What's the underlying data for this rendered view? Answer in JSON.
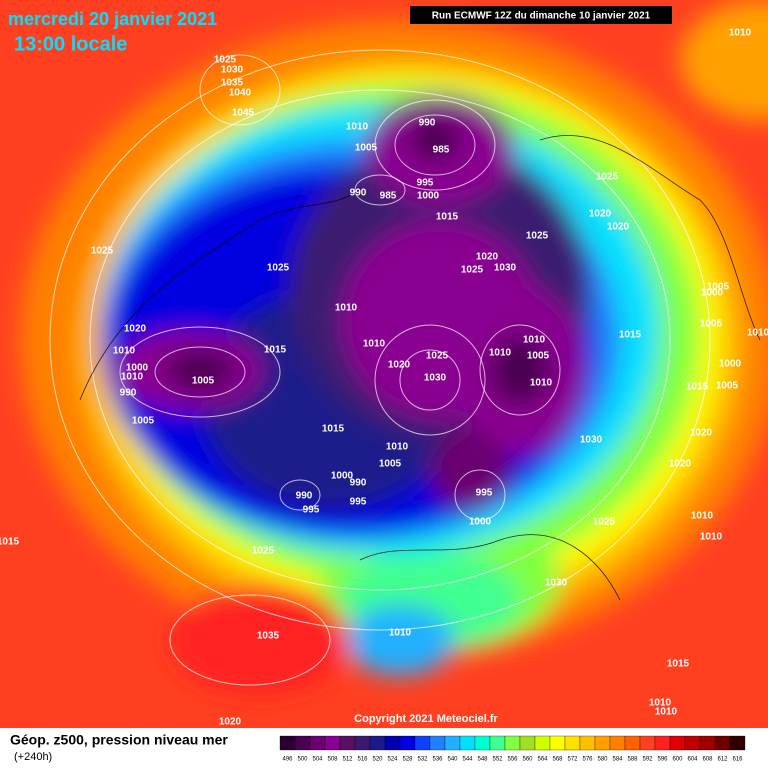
{
  "header": {
    "date": "mercredi 20 janvier 2021",
    "time": "13:00 locale",
    "run": "Run ECMWF 12Z du dimanche 10 janvier 2021"
  },
  "map": {
    "isobar_labels": [
      1025,
      1030,
      1035,
      1040,
      1045,
      1010,
      990,
      985,
      1005,
      995,
      1000,
      990,
      985,
      1015,
      1025,
      1025,
      1020,
      1020,
      1025,
      1025,
      1020,
      1025,
      1030,
      1005,
      1000,
      1010,
      1010,
      1020,
      1010,
      1015,
      1025,
      1020,
      1030,
      1010,
      1010,
      1005,
      1010,
      1005,
      1010,
      1015,
      1000,
      1005,
      1015,
      1000,
      1010,
      990,
      1005,
      1005,
      1015,
      1010,
      1005,
      1030,
      1020,
      1020,
      1000,
      990,
      995,
      990,
      995,
      995,
      1000,
      1025,
      1010,
      1010,
      1015,
      1025,
      1030,
      1010,
      1035,
      1015,
      1010,
      1010,
      1020,
      1010
    ],
    "copyright": "Copyright 2021 Meteociel.fr"
  },
  "footer": {
    "title": "Géop. z500, pression niveau mer",
    "lead": "(+240h)",
    "scale": {
      "labels": [
        496,
        500,
        504,
        508,
        512,
        516,
        520,
        524,
        528,
        532,
        536,
        540,
        544,
        548,
        552,
        556,
        560,
        564,
        568,
        572,
        576,
        580,
        584,
        588,
        592,
        596,
        600,
        604,
        608,
        612,
        616
      ],
      "colors": [
        "#2b0030",
        "#4a0050",
        "#6b0070",
        "#8a0090",
        "#5a1060",
        "#3a1a70",
        "#1a1a8a",
        "#0000b0",
        "#0000e0",
        "#1040ff",
        "#2080ff",
        "#20b0ff",
        "#00e0ff",
        "#00ffd0",
        "#40ff90",
        "#80ff40",
        "#a0e020",
        "#d0ff00",
        "#ffff00",
        "#ffe000",
        "#ffc000",
        "#ffa000",
        "#ff8000",
        "#ff6000",
        "#ff4020",
        "#ff2020",
        "#e00000",
        "#c00000",
        "#a00000",
        "#700000",
        "#300000"
      ]
    }
  }
}
